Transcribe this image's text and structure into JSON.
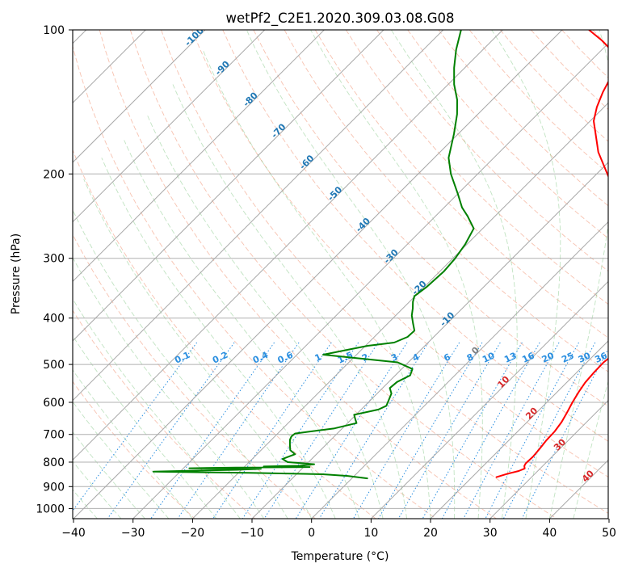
{
  "chart_data": {
    "type": "skew-t",
    "title": "wetPf2_C2E1.2020.309.03.08.G08",
    "xlabel": "Temperature (°C)",
    "ylabel": "Pressure (hPa)",
    "xlim": [
      -40,
      50
    ],
    "ylim_hpa": [
      1050,
      100
    ],
    "log_pressure": true,
    "grid": true,
    "x_ticks": [
      "−40",
      "−30",
      "−20",
      "−10",
      "0",
      "10",
      "20",
      "30",
      "40",
      "50"
    ],
    "y_ticks": [
      {
        "p": 100,
        "label": "100"
      },
      {
        "p": 200,
        "label": "200"
      },
      {
        "p": 300,
        "label": "300"
      },
      {
        "p": 400,
        "label": "400"
      },
      {
        "p": 500,
        "label": "500"
      },
      {
        "p": 600,
        "label": "600"
      },
      {
        "p": 700,
        "label": "700"
      },
      {
        "p": 800,
        "label": "800"
      },
      {
        "p": 900,
        "label": "900"
      },
      {
        "p": 1000,
        "label": "1000"
      }
    ],
    "isotherm_labels": [
      {
        "t": -100,
        "label": "-100"
      },
      {
        "t": -90,
        "label": "-90"
      },
      {
        "t": -80,
        "label": "-80"
      },
      {
        "t": -70,
        "label": "-70"
      },
      {
        "t": -60,
        "label": "-60"
      },
      {
        "t": -50,
        "label": "-50"
      },
      {
        "t": -40,
        "label": "-40"
      },
      {
        "t": -30,
        "label": "-30"
      },
      {
        "t": -20,
        "label": "-20"
      },
      {
        "t": -10,
        "label": "-10"
      },
      {
        "t": 0,
        "label": "0"
      },
      {
        "t": 10,
        "label": "10"
      },
      {
        "t": 20,
        "label": "20"
      },
      {
        "t": 30,
        "label": "30"
      },
      {
        "t": 40,
        "label": "40"
      }
    ],
    "mixing_ratio_labels": [
      "0.1",
      "0.2",
      "0.4",
      "0.6",
      "1",
      "1.5",
      "2",
      "3",
      "4",
      "6",
      "8",
      "10",
      "13",
      "16",
      "20",
      "25",
      "30",
      "36"
    ],
    "series": [
      {
        "name": "",
        "color": "#ff0000",
        "points": [
          [
            860,
            24.1
          ],
          [
            845,
            25.5
          ],
          [
            835,
            26.8
          ],
          [
            825,
            27.4
          ],
          [
            815,
            26.9
          ],
          [
            805,
            26.7
          ],
          [
            780,
            26.8
          ],
          [
            750,
            26.6
          ],
          [
            720,
            26.3
          ],
          [
            690,
            26.2
          ],
          [
            660,
            25.8
          ],
          [
            630,
            25.1
          ],
          [
            600,
            24.3
          ],
          [
            570,
            23.6
          ],
          [
            545,
            23.1
          ],
          [
            520,
            22.9
          ],
          [
            495,
            22.8
          ],
          [
            470,
            23.3
          ],
          [
            445,
            22.8
          ],
          [
            420,
            22.1
          ],
          [
            400,
            21.4
          ],
          [
            370,
            18.0
          ],
          [
            350,
            15.3
          ],
          [
            320,
            12.1
          ],
          [
            300,
            9.5
          ],
          [
            280,
            6.6
          ],
          [
            260,
            3.6
          ],
          [
            240,
            0.6
          ],
          [
            220,
            -3.4
          ],
          [
            200,
            -8.2
          ],
          [
            180,
            -13.4
          ],
          [
            165,
            -16.9
          ],
          [
            155,
            -19.4
          ],
          [
            145,
            -21.2
          ],
          [
            135,
            -22.7
          ],
          [
            127,
            -23.7
          ],
          [
            122,
            -23.6
          ],
          [
            115,
            -26.1
          ],
          [
            110,
            -28.5
          ],
          [
            105,
            -31.7
          ],
          [
            100,
            -35.5
          ]
        ]
      },
      {
        "name": "",
        "color": "#008000",
        "points": [
          [
            865,
            2.6
          ],
          [
            855,
            -1.1
          ],
          [
            848,
            -5.6
          ],
          [
            845,
            -11.8
          ],
          [
            842,
            -18.3
          ],
          [
            840,
            -25.8
          ],
          [
            837,
            -34.5
          ],
          [
            833,
            -26.7
          ],
          [
            830,
            -20.7
          ],
          [
            826,
            -16.9
          ],
          [
            824,
            -29.0
          ],
          [
            821,
            -21.3
          ],
          [
            819,
            -9.0
          ],
          [
            817,
            -16.8
          ],
          [
            814,
            -10.9
          ],
          [
            808,
            -8.7
          ],
          [
            800,
            -13.5
          ],
          [
            788,
            -14.9
          ],
          [
            770,
            -13.6
          ],
          [
            755,
            -15.1
          ],
          [
            735,
            -16.1
          ],
          [
            718,
            -16.9
          ],
          [
            707,
            -17.2
          ],
          [
            697,
            -17.1
          ],
          [
            680,
            -11.3
          ],
          [
            663,
            -8.5
          ],
          [
            650,
            -9.4
          ],
          [
            637,
            -10.3
          ],
          [
            621,
            -7.1
          ],
          [
            610,
            -6.4
          ],
          [
            595,
            -6.9
          ],
          [
            575,
            -7.6
          ],
          [
            560,
            -8.8
          ],
          [
            544,
            -8.6
          ],
          [
            527,
            -7.5
          ],
          [
            511,
            -8.2
          ],
          [
            495,
            -11.8
          ],
          [
            477,
            -25.6
          ],
          [
            465,
            -22.0
          ],
          [
            457,
            -19.6
          ],
          [
            450,
            -15.7
          ],
          [
            438,
            -14.4
          ],
          [
            425,
            -14.3
          ],
          [
            410,
            -15.8
          ],
          [
            395,
            -17.3
          ],
          [
            382,
            -18.3
          ],
          [
            370,
            -19.4
          ],
          [
            360,
            -20.1
          ],
          [
            345,
            -19.6
          ],
          [
            320,
            -19.3
          ],
          [
            300,
            -19.6
          ],
          [
            280,
            -20.3
          ],
          [
            260,
            -21.5
          ],
          [
            245,
            -24.6
          ],
          [
            235,
            -27.0
          ],
          [
            220,
            -30.0
          ],
          [
            200,
            -34.5
          ],
          [
            185,
            -37.6
          ],
          [
            165,
            -40.7
          ],
          [
            150,
            -43.5
          ],
          [
            140,
            -45.9
          ],
          [
            130,
            -49.0
          ],
          [
            120,
            -51.8
          ],
          [
            110,
            -54.5
          ],
          [
            100,
            -57.0
          ]
        ]
      }
    ]
  }
}
